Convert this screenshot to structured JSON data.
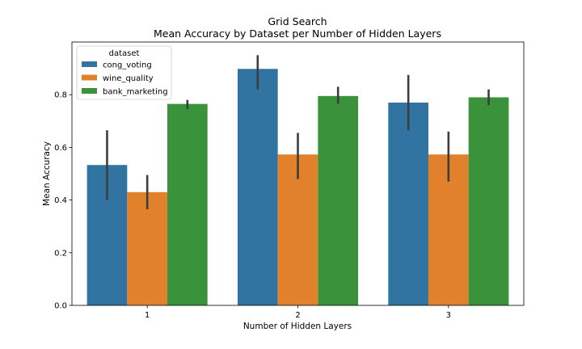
{
  "chart_data": {
    "type": "bar",
    "title": "Grid Search",
    "subtitle": "Mean Accuracy by Dataset per Number of Hidden Layers",
    "xlabel": "Number of Hidden Layers",
    "ylabel": "Mean Accuracy",
    "categories": [
      "1",
      "2",
      "3"
    ],
    "ylim": [
      0,
      1.0
    ],
    "yticks": [
      "0.0",
      "0.2",
      "0.4",
      "0.6",
      "0.8"
    ],
    "legend": {
      "title": "dataset",
      "position": "top-left"
    },
    "grid": false,
    "series": [
      {
        "name": "cong_voting",
        "color": "#3274a1",
        "values": [
          0.533,
          0.898,
          0.77
        ],
        "error_low": [
          0.4,
          0.82,
          0.665
        ],
        "error_high": [
          0.665,
          0.95,
          0.875
        ]
      },
      {
        "name": "wine_quality",
        "color": "#e1812c",
        "values": [
          0.43,
          0.573,
          0.573
        ],
        "error_low": [
          0.365,
          0.48,
          0.47
        ],
        "error_high": [
          0.495,
          0.655,
          0.66
        ]
      },
      {
        "name": "bank_marketing",
        "color": "#3a923a",
        "values": [
          0.765,
          0.795,
          0.79
        ],
        "error_low": [
          0.745,
          0.765,
          0.76
        ],
        "error_high": [
          0.78,
          0.83,
          0.82
        ]
      }
    ]
  }
}
